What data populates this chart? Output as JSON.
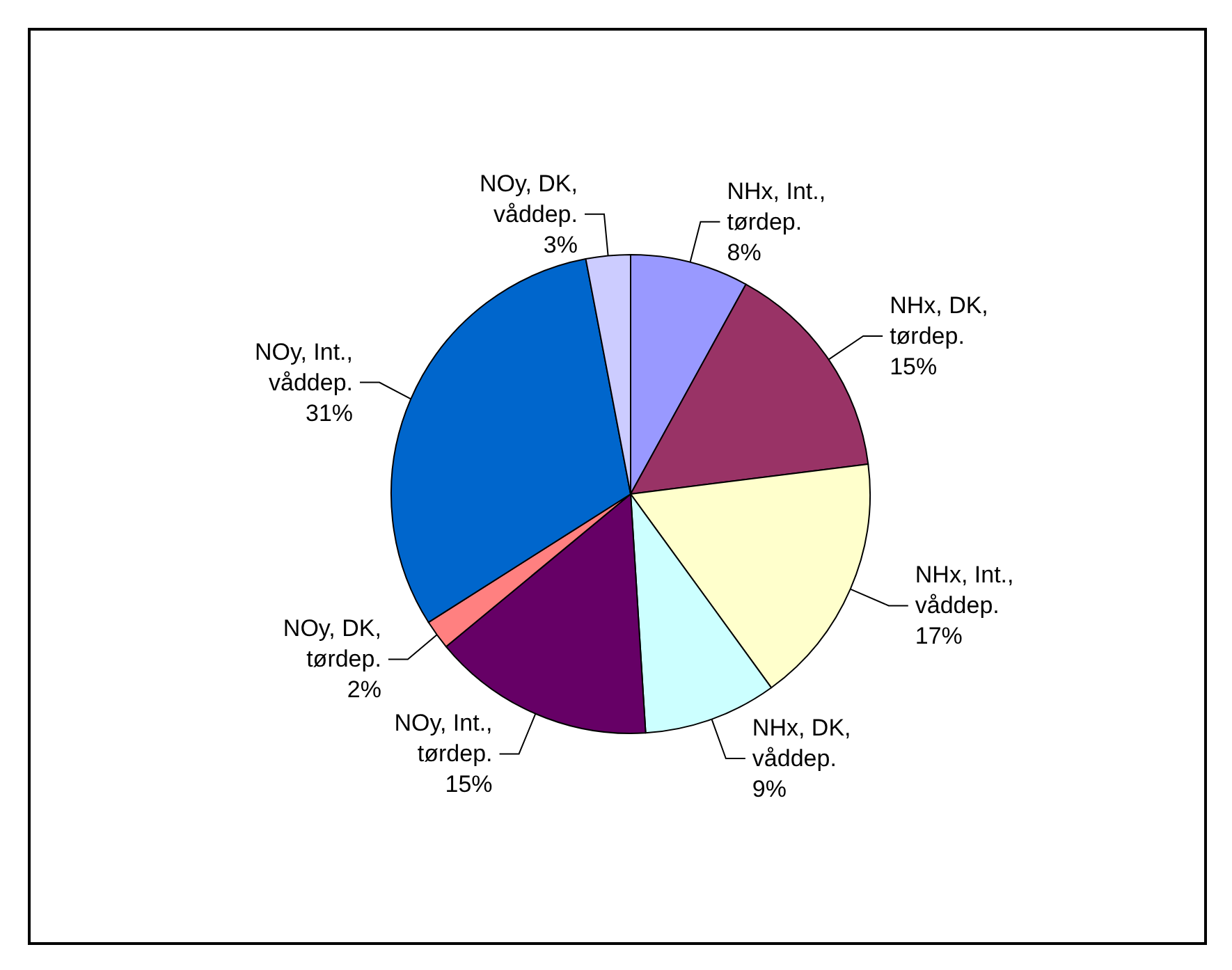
{
  "chart_data": {
    "type": "pie",
    "categories": [
      "NHx, Int., tørdep.",
      "NHx, DK, tørdep.",
      "NHx, Int., våddep.",
      "NHx, DK, våddep.",
      "NOy, Int., tørdep.",
      "NOy, DK, tørdep.",
      "NOy, Int., våddep.",
      "NOy, DK, våddep."
    ],
    "values": [
      8,
      15,
      17,
      9,
      15,
      2,
      31,
      3
    ],
    "value_labels": [
      "8%",
      "15%",
      "17%",
      "9%",
      "15%",
      "2%",
      "31%",
      "3%"
    ],
    "colors": [
      "#9999ff",
      "#993366",
      "#ffffcc",
      "#ccffff",
      "#660066",
      "#ff8080",
      "#0066cc",
      "#ccccff"
    ],
    "legend": false
  }
}
